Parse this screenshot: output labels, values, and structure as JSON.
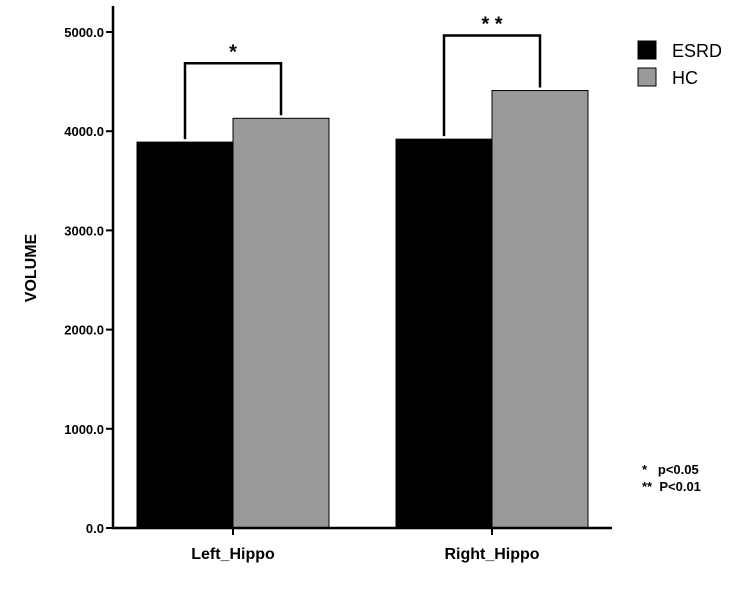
{
  "chart_data": {
    "type": "bar",
    "categories": [
      "Left_Hippo",
      "Right_Hippo"
    ],
    "series": [
      {
        "name": "ESRD",
        "values": [
          3890,
          3920
        ],
        "color": "#000000"
      },
      {
        "name": "HC",
        "values": [
          4130,
          4410
        ],
        "color": "#999999"
      }
    ],
    "ylabel": "VOLUME",
    "xlabel": "",
    "ylim": [
      0,
      5000
    ],
    "yticks": [
      "0.0",
      "1000.0",
      "2000.0",
      "3000.0",
      "4000.0",
      "5000.0"
    ],
    "grid": false,
    "legend_position": "top-right",
    "significance": [
      {
        "category": "Left_Hippo",
        "marker": "*"
      },
      {
        "category": "Right_Hippo",
        "marker": "* *"
      }
    ],
    "footnotes": [
      "*   p<0.05",
      "**  P<0.01"
    ]
  }
}
